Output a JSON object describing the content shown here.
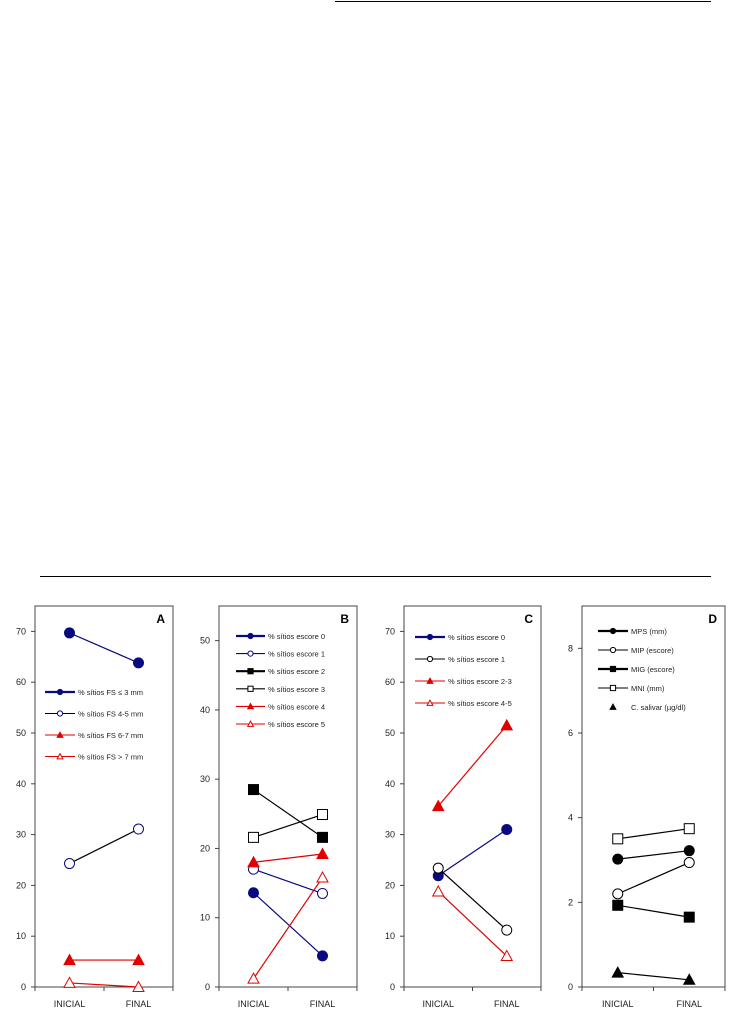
{
  "chart_data": [
    {
      "type": "line",
      "panel_label": "A",
      "categories": [
        "INICIAL",
        "FINAL"
      ],
      "ylim": [
        0,
        75
      ],
      "yticks": [
        0,
        10,
        20,
        30,
        40,
        50,
        60,
        70
      ],
      "legend_position": "upper-left",
      "series": [
        {
          "name": "% sítios FS ≤ 3 mm",
          "values": [
            69.7,
            63.8
          ],
          "color": "#0a0a80",
          "marker": "circle-filled"
        },
        {
          "name": "% sítios FS 4-5 mm",
          "values": [
            24.3,
            31.1
          ],
          "color": "#000000",
          "marker_color": "#0a0a80",
          "marker": "circle-open"
        },
        {
          "name": "% sítios FS 6-7 mm",
          "values": [
            5.3,
            5.3
          ],
          "color": "#e00000",
          "marker": "triangle-filled"
        },
        {
          "name": "% sítios FS > 7 mm",
          "values": [
            0.8,
            0.0
          ],
          "color": "#e00000",
          "marker": "triangle-open"
        }
      ]
    },
    {
      "type": "line",
      "panel_label": "B",
      "categories": [
        "INICIAL",
        "FINAL"
      ],
      "ylim": [
        0,
        55
      ],
      "yticks": [
        0,
        10,
        20,
        30,
        40,
        50
      ],
      "legend_position": "upper-left",
      "series": [
        {
          "name": "% sítios escore 0",
          "values": [
            13.6,
            4.5
          ],
          "color": "#0a0a80",
          "marker": "circle-filled"
        },
        {
          "name": "% sítios escore 1",
          "values": [
            17.0,
            13.5
          ],
          "color": "#0a0a80",
          "marker": "circle-open"
        },
        {
          "name": "% sítios escore 2",
          "values": [
            28.5,
            21.6
          ],
          "color": "#000000",
          "marker": "square-filled"
        },
        {
          "name": "% sítios escore 3",
          "values": [
            21.6,
            24.9
          ],
          "color": "#000000",
          "marker": "square-open"
        },
        {
          "name": "% sítios escore 4",
          "values": [
            18.0,
            19.2
          ],
          "color": "#e00000",
          "marker": "triangle-filled"
        },
        {
          "name": "% sítios escore 5",
          "values": [
            1.2,
            15.8
          ],
          "color": "#e00000",
          "marker": "triangle-open"
        }
      ]
    },
    {
      "type": "line",
      "panel_label": "C",
      "categories": [
        "INICIAL",
        "FINAL"
      ],
      "ylim": [
        0,
        75
      ],
      "yticks": [
        0,
        10,
        20,
        30,
        40,
        50,
        60,
        70
      ],
      "legend_position": "upper-left",
      "series": [
        {
          "name": "% sítios escore 0",
          "values": [
            21.9,
            31.0
          ],
          "color": "#0a0a80",
          "marker": "circle-filled"
        },
        {
          "name": "% sítios escore 1",
          "values": [
            23.4,
            11.2
          ],
          "color": "#000000",
          "marker": "circle-open"
        },
        {
          "name": "% sítios escore 2-3",
          "values": [
            35.6,
            51.5
          ],
          "color": "#e00000",
          "marker": "triangle-filled"
        },
        {
          "name": "% sítios escore 4-5",
          "values": [
            18.8,
            6.1
          ],
          "color": "#e00000",
          "marker": "triangle-open"
        }
      ]
    },
    {
      "type": "line",
      "panel_label": "D",
      "categories": [
        "INICIAL",
        "FINAL"
      ],
      "ylim": [
        0,
        9
      ],
      "yticks": [
        0,
        2,
        4,
        6,
        8
      ],
      "legend_position": "upper-left",
      "series": [
        {
          "name": "MPS (mm)",
          "values": [
            3.02,
            3.22
          ],
          "color": "#000000",
          "marker": "circle-filled"
        },
        {
          "name": "MIP (escore)",
          "values": [
            2.2,
            2.94
          ],
          "color": "#000000",
          "marker": "circle-open"
        },
        {
          "name": "MIG (escore)",
          "values": [
            1.93,
            1.65
          ],
          "color": "#000000",
          "marker": "square-filled"
        },
        {
          "name": "MNI (mm)",
          "values": [
            3.5,
            3.74
          ],
          "color": "#000000",
          "marker": "square-open"
        },
        {
          "name": "C. salivar (µg/dl)",
          "values": [
            0.34,
            0.17
          ],
          "color": "#000000",
          "marker": "triangle-filled",
          "no_line_in_legend": true
        }
      ]
    }
  ]
}
